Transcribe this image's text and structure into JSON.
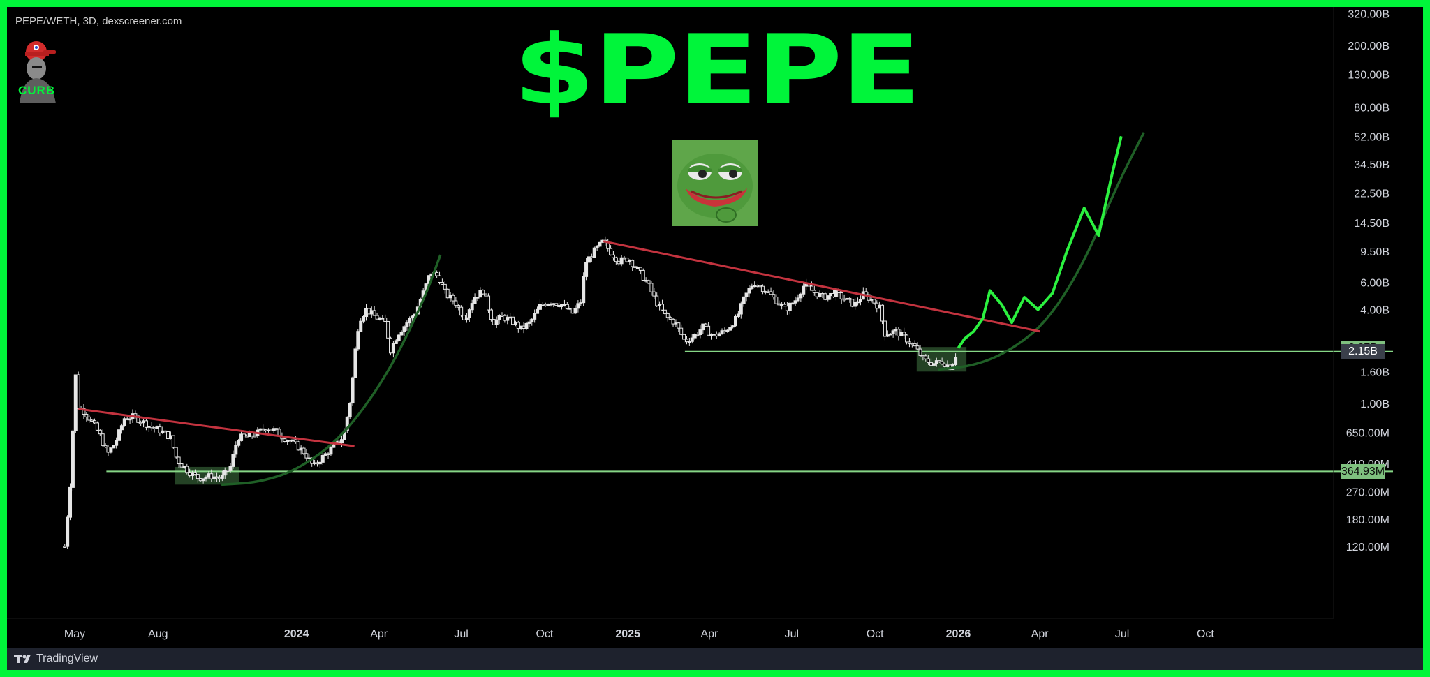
{
  "header": {
    "symbol_label": "PEPE/WETH, 3D, dexscreener.com",
    "title": "$PEPE",
    "author": "CURB"
  },
  "footer": {
    "brand": "TradingView"
  },
  "colors": {
    "background": "#000000",
    "frame": "#00f53a",
    "accent_green": "#00f53a",
    "candle": "#e6e6e6",
    "trendline_red": "#c3333f",
    "support_line": "#86d686",
    "curve": "#1f5f26",
    "zone_fill": "#2a4d2b",
    "projection": "#2bf03f"
  },
  "icons": [
    "author-avatar-icon",
    "pepe-frog-icon",
    "tradingview-logo-icon"
  ],
  "chart_data": {
    "type": "line",
    "subtype": "candlestick-market-cap",
    "title": "$PEPE",
    "xlabel": "",
    "ylabel": "",
    "scale": "log",
    "ylim": [
      100000000,
      330000000000
    ],
    "grid": false,
    "x_tick_labels": [
      "May",
      "Aug",
      "2024",
      "Apr",
      "Jul",
      "Oct",
      "2025",
      "Apr",
      "Jul",
      "Oct",
      "2026",
      "Apr",
      "Jul",
      "Oct"
    ],
    "y_tick_labels": [
      "320.00B",
      "200.00B",
      "130.00B",
      "80.00B",
      "52.00B",
      "34.50B",
      "22.50B",
      "14.50B",
      "9.50B",
      "6.00B",
      "4.00B",
      "1.60B",
      "1.00B",
      "650.00M",
      "410.00M",
      "270.00M",
      "180.00M",
      "120.00M"
    ],
    "price_badges": [
      {
        "label": "2.27B",
        "value": 2270000000,
        "color": "#7fc07f"
      },
      {
        "label": "2.15B",
        "value": 2150000000,
        "color": "#3a3f4a"
      },
      {
        "label": "364.93M",
        "value": 364930000,
        "color": "#7fc07f"
      }
    ],
    "series": [
      {
        "name": "",
        "points": [
          [
            "2023-04-20",
            120000000
          ],
          [
            "2023-04-26",
            300000000
          ],
          [
            "2023-05-02",
            1500000000
          ],
          [
            "2023-05-05",
            950000000
          ],
          [
            "2023-05-12",
            880000000
          ],
          [
            "2023-05-20",
            760000000
          ],
          [
            "2023-05-28",
            640000000
          ],
          [
            "2023-06-06",
            470000000
          ],
          [
            "2023-06-15",
            560000000
          ],
          [
            "2023-06-25",
            800000000
          ],
          [
            "2023-07-05",
            820000000
          ],
          [
            "2023-07-15",
            760000000
          ],
          [
            "2023-07-25",
            700000000
          ],
          [
            "2023-08-05",
            660000000
          ],
          [
            "2023-08-15",
            600000000
          ],
          [
            "2023-08-22",
            430000000
          ],
          [
            "2023-09-05",
            360000000
          ],
          [
            "2023-09-15",
            330000000
          ],
          [
            "2023-09-28",
            340000000
          ],
          [
            "2023-10-10",
            330000000
          ],
          [
            "2023-10-20",
            390000000
          ],
          [
            "2023-10-28",
            600000000
          ],
          [
            "2023-11-08",
            610000000
          ],
          [
            "2023-11-18",
            640000000
          ],
          [
            "2023-11-28",
            700000000
          ],
          [
            "2023-12-08",
            670000000
          ],
          [
            "2023-12-18",
            600000000
          ],
          [
            "2023-12-28",
            560000000
          ],
          [
            "2024-01-10",
            480000000
          ],
          [
            "2024-01-20",
            390000000
          ],
          [
            "2024-01-28",
            440000000
          ],
          [
            "2024-02-10",
            520000000
          ],
          [
            "2024-02-22",
            610000000
          ],
          [
            "2024-03-01",
            1100000000
          ],
          [
            "2024-03-06",
            2200000000
          ],
          [
            "2024-03-10",
            3400000000
          ],
          [
            "2024-03-18",
            4000000000
          ],
          [
            "2024-03-28",
            3600000000
          ],
          [
            "2024-04-08",
            3300000000
          ],
          [
            "2024-04-14",
            2200000000
          ],
          [
            "2024-04-22",
            2800000000
          ],
          [
            "2024-05-02",
            3300000000
          ],
          [
            "2024-05-12",
            3900000000
          ],
          [
            "2024-05-22",
            5500000000
          ],
          [
            "2024-05-28",
            7000000000
          ],
          [
            "2024-06-06",
            6500000000
          ],
          [
            "2024-06-14",
            5000000000
          ],
          [
            "2024-06-24",
            4500000000
          ],
          [
            "2024-07-05",
            3500000000
          ],
          [
            "2024-07-15",
            4800000000
          ],
          [
            "2024-07-25",
            5300000000
          ],
          [
            "2024-08-05",
            3300000000
          ],
          [
            "2024-08-15",
            3600000000
          ],
          [
            "2024-08-25",
            3400000000
          ],
          [
            "2024-09-05",
            3000000000
          ],
          [
            "2024-09-15",
            3300000000
          ],
          [
            "2024-09-27",
            4300000000
          ],
          [
            "2024-10-08",
            4500000000
          ],
          [
            "2024-10-20",
            4300000000
          ],
          [
            "2024-11-01",
            3800000000
          ],
          [
            "2024-11-10",
            4500000000
          ],
          [
            "2024-11-15",
            8000000000
          ],
          [
            "2024-11-25",
            9500000000
          ],
          [
            "2024-12-05",
            11000000000
          ],
          [
            "2024-12-12",
            9500000000
          ],
          [
            "2024-12-22",
            8200000000
          ],
          [
            "2025-01-02",
            8500000000
          ],
          [
            "2025-01-12",
            7200000000
          ],
          [
            "2025-01-22",
            6000000000
          ],
          [
            "2025-02-01",
            4500000000
          ],
          [
            "2025-02-12",
            3600000000
          ],
          [
            "2025-02-22",
            3300000000
          ],
          [
            "2025-03-05",
            2500000000
          ],
          [
            "2025-03-15",
            2700000000
          ],
          [
            "2025-03-25",
            3100000000
          ],
          [
            "2025-04-05",
            2700000000
          ],
          [
            "2025-04-18",
            2900000000
          ],
          [
            "2025-05-01",
            3500000000
          ],
          [
            "2025-05-10",
            4800000000
          ],
          [
            "2025-05-20",
            6000000000
          ],
          [
            "2025-06-01",
            5400000000
          ],
          [
            "2025-06-12",
            4700000000
          ],
          [
            "2025-06-24",
            4000000000
          ],
          [
            "2025-07-05",
            4600000000
          ],
          [
            "2025-07-15",
            5800000000
          ],
          [
            "2025-07-25",
            5200000000
          ],
          [
            "2025-08-05",
            4800000000
          ],
          [
            "2025-08-18",
            5100000000
          ],
          [
            "2025-08-30",
            4600000000
          ],
          [
            "2025-09-08",
            4300000000
          ],
          [
            "2025-09-18",
            5000000000
          ],
          [
            "2025-09-28",
            4600000000
          ],
          [
            "2025-10-06",
            4100000000
          ],
          [
            "2025-10-12",
            2800000000
          ],
          [
            "2025-10-24",
            2900000000
          ],
          [
            "2025-11-04",
            2600000000
          ],
          [
            "2025-11-14",
            2300000000
          ],
          [
            "2025-11-24",
            1900000000
          ],
          [
            "2025-12-04",
            1800000000
          ],
          [
            "2025-12-14",
            1850000000
          ],
          [
            "2025-12-24",
            1700000000
          ],
          [
            "2026-01-01",
            2270000000
          ]
        ]
      }
    ],
    "projection": [
      [
        "2026-01-01",
        2270000000
      ],
      [
        "2026-01-08",
        2600000000
      ],
      [
        "2026-01-18",
        2900000000
      ],
      [
        "2026-01-28",
        3500000000
      ],
      [
        "2026-02-05",
        5300000000
      ],
      [
        "2026-02-18",
        4300000000
      ],
      [
        "2026-03-01",
        3300000000
      ],
      [
        "2026-03-15",
        4800000000
      ],
      [
        "2026-03-30",
        4000000000
      ],
      [
        "2026-04-15",
        5100000000
      ],
      [
        "2026-05-01",
        9500000000
      ],
      [
        "2026-05-20",
        18000000000
      ],
      [
        "2026-06-05",
        12000000000
      ],
      [
        "2026-06-20",
        30000000000
      ],
      [
        "2026-06-30",
        52000000000
      ]
    ],
    "trendlines_red": [
      [
        [
          "2023-05-05",
          920000000
        ],
        [
          "2024-03-05",
          530000000
        ]
      ],
      [
        [
          "2024-12-05",
          11000000000
        ],
        [
          "2026-04-01",
          2900000000
        ]
      ]
    ],
    "support_lines": [
      {
        "from": "2023-06-05",
        "value": 364930000
      },
      {
        "from": "2025-03-05",
        "value": 2150000000
      }
    ],
    "parabolic_curves": [
      [
        [
          "2023-10-10",
          300000000
        ],
        [
          "2023-11-20",
          310000000
        ],
        [
          "2024-01-01",
          370000000
        ],
        [
          "2024-02-20",
          600000000
        ],
        [
          "2024-04-10",
          1500000000
        ],
        [
          "2024-05-20",
          4500000000
        ],
        [
          "2024-06-08",
          9000000000
        ]
      ],
      [
        [
          "2025-12-10",
          1650000000
        ],
        [
          "2026-01-20",
          1750000000
        ],
        [
          "2026-03-01",
          2200000000
        ],
        [
          "2026-04-10",
          3400000000
        ],
        [
          "2026-05-20",
          8000000000
        ],
        [
          "2026-06-25",
          25000000000
        ],
        [
          "2026-07-25",
          55000000000
        ]
      ]
    ],
    "highlight_zones": [
      {
        "x": [
          "2023-08-20",
          "2023-10-30"
        ],
        "y": [
          300000000,
          390000000
        ]
      },
      {
        "x": [
          "2025-11-16",
          "2026-01-10"
        ],
        "y": [
          1600000000,
          2300000000
        ]
      }
    ]
  }
}
